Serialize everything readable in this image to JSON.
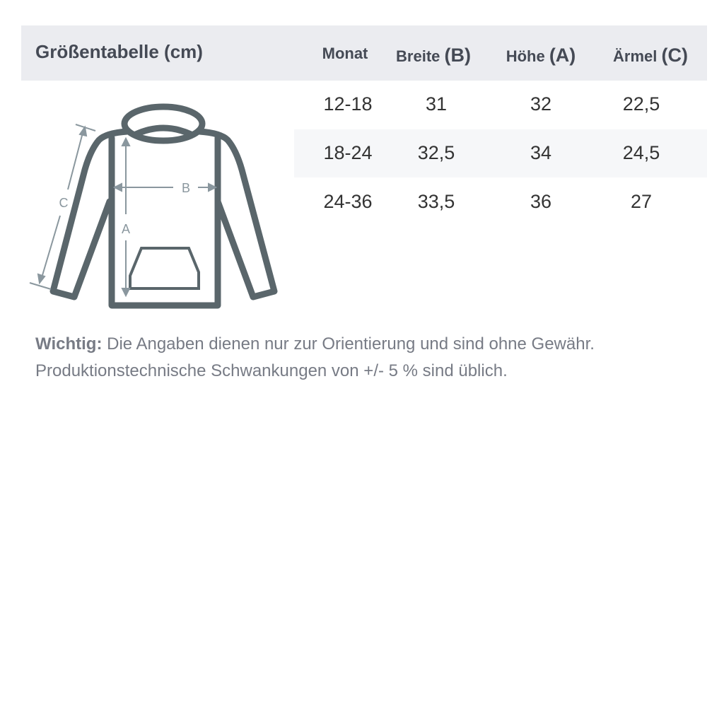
{
  "title": "Größentabelle (cm)",
  "columns": [
    {
      "label": "Monat",
      "letter": ""
    },
    {
      "label": "Breite ",
      "letter": "(B)"
    },
    {
      "label": "Höhe ",
      "letter": "(A)"
    },
    {
      "label": "Ärmel ",
      "letter": "(C)"
    }
  ],
  "rows": [
    [
      "12-18",
      "31",
      "32",
      "22,5"
    ],
    [
      "18-24",
      "32,5",
      "34",
      "24,5"
    ],
    [
      "24-36",
      "33,5",
      "36",
      "27"
    ]
  ],
  "diagram": {
    "label_a": "A",
    "label_b": "B",
    "label_c": "C"
  },
  "note": {
    "bold": "Wichtig:",
    "line1": " Die Angaben dienen nur zur Orientierung und sind ohne Gewähr.",
    "line2": "Produktionstechnische Schwankungen von +/- 5 % sind üblich."
  },
  "colors": {
    "header_bg": "#ebecf0",
    "outline": "#5a666b",
    "measure": "#8a979e"
  }
}
